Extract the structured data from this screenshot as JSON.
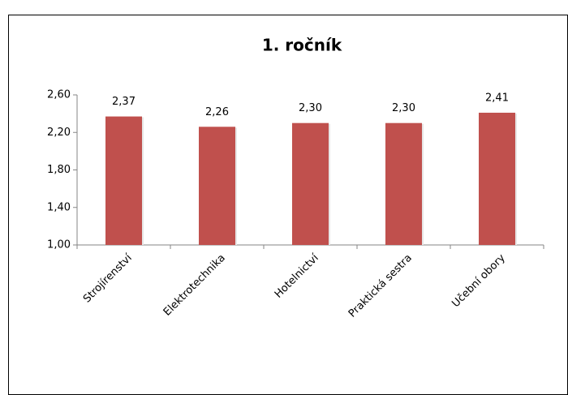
{
  "chart_data": {
    "type": "bar",
    "title": "1. ročník",
    "categories": [
      "Strojírenství",
      "Elektrotechnika",
      "Hotelnictví",
      "Praktická sestra",
      "Učební obory"
    ],
    "values": [
      2.37,
      2.26,
      2.3,
      2.3,
      2.41
    ],
    "value_labels": [
      "2,37",
      "2,26",
      "2,30",
      "2,30",
      "2,41"
    ],
    "color": "#c0504d",
    "ylim": [
      1.0,
      2.6
    ],
    "yticks": [
      {
        "value": 1.0,
        "label": "1,00"
      },
      {
        "value": 1.4,
        "label": "1,40"
      },
      {
        "value": 1.8,
        "label": "1,80"
      },
      {
        "value": 2.2,
        "label": "2,20"
      },
      {
        "value": 2.6,
        "label": "2,60"
      }
    ],
    "grid": false
  }
}
